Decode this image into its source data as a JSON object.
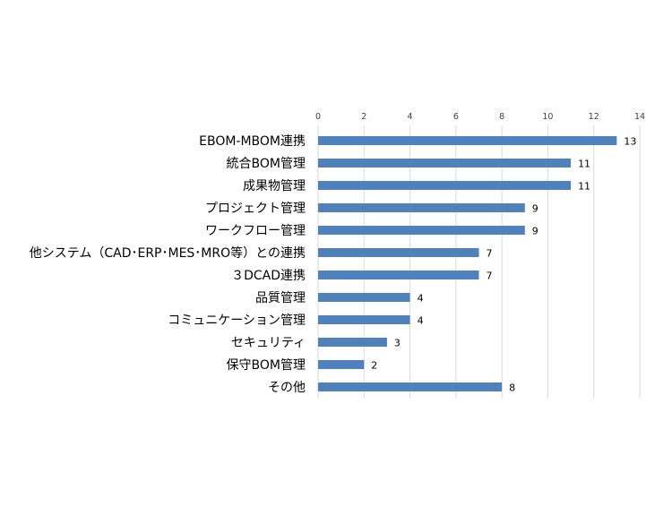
{
  "chart_data": {
    "type": "bar",
    "orientation": "horizontal",
    "categories": [
      "EBOM-MBOM連携",
      "統合BOM管理",
      "成果物管理",
      "プロジェクト管理",
      "ワークフロー管理",
      "他システム（CAD･ERP･MES･MRO等）との連携",
      "３DCAD連携",
      "品質管理",
      "コミュニケーション管理",
      "セキュリティ",
      "保守BOM管理",
      "その他"
    ],
    "values": [
      13,
      11,
      11,
      9,
      9,
      7,
      7,
      4,
      4,
      3,
      2,
      8
    ],
    "data_labels": [
      "13",
      "11",
      "11",
      "9",
      "9",
      "7",
      "7",
      "4",
      "4",
      "3",
      "2",
      "8"
    ],
    "xlim": [
      0,
      14
    ],
    "x_ticks": [
      "0",
      "2",
      "4",
      "6",
      "8",
      "10",
      "12",
      "14"
    ],
    "x_axis_position": "top",
    "grid": true,
    "legend": "none",
    "title": "",
    "xlabel": "",
    "ylabel": "",
    "colors": {
      "bar": "#4f81bd",
      "grid": "#d9d9d9",
      "text": "#000000",
      "tick_text": "#404040"
    }
  }
}
